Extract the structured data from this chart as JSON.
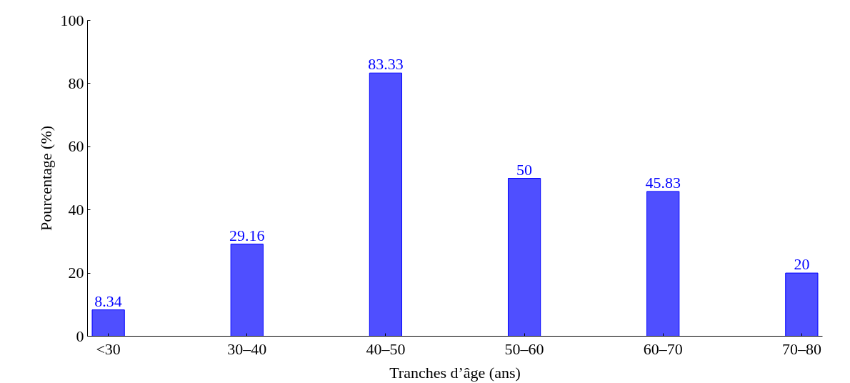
{
  "chart_data": {
    "type": "bar",
    "xlabel": "Tranches d’âge (ans)",
    "ylabel": "Pourcentage (%)",
    "categories": [
      "<30",
      "30–40",
      "40–50",
      "50–60",
      "60–70",
      "70–80"
    ],
    "values": [
      8.34,
      29.16,
      83.33,
      50,
      45.83,
      20
    ],
    "color": "#4f4fff",
    "ylim": [
      0,
      100
    ],
    "yticks": [
      0,
      20,
      40,
      60,
      80,
      100
    ],
    "grid": false,
    "data_labels": true
  }
}
